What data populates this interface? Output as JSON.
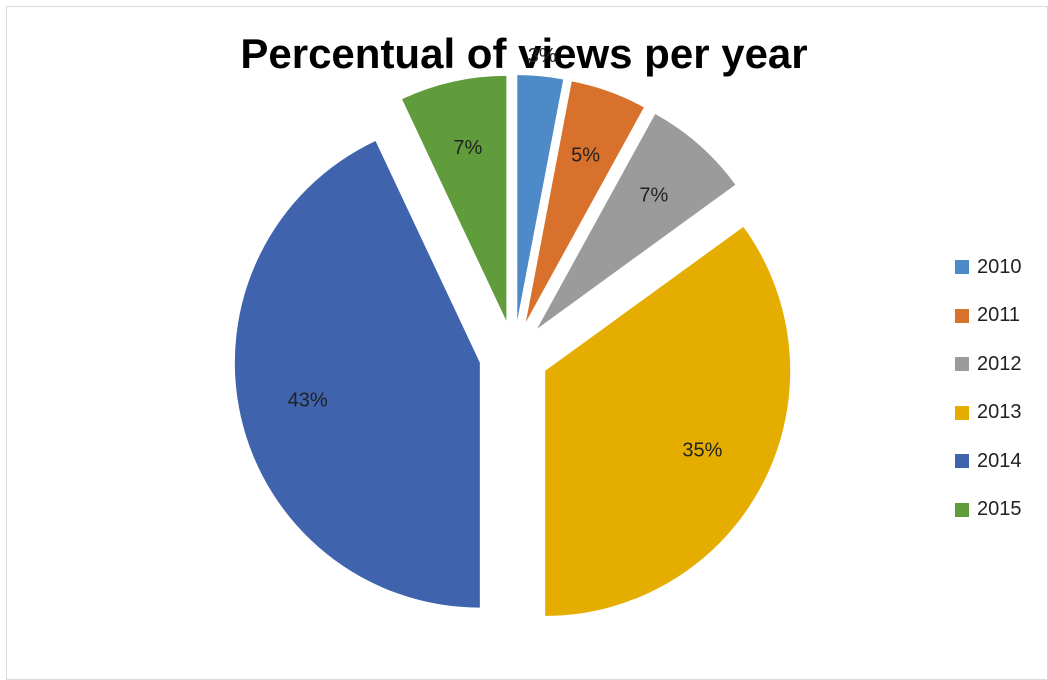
{
  "chart_data": {
    "type": "pie",
    "title": "Percentual of views per year",
    "categories": [
      "2010",
      "2011",
      "2012",
      "2013",
      "2014",
      "2015"
    ],
    "values": [
      3,
      5,
      7,
      35,
      43,
      7
    ],
    "data_labels": [
      "3%",
      "5%",
      "7%",
      "35%",
      "43%",
      "7%"
    ],
    "colors": [
      "#4E8AC8",
      "#D8712C",
      "#9B9B9B",
      "#E5AD00",
      "#3F63AD",
      "#609C3C"
    ],
    "exploded": true,
    "legend_position": "right"
  }
}
